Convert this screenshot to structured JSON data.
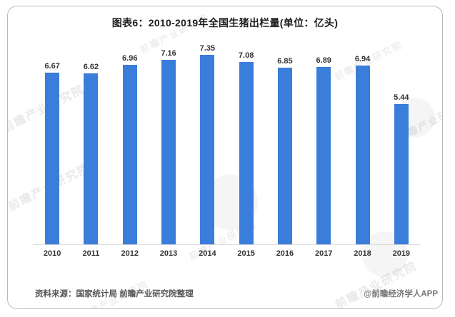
{
  "chart_data": {
    "type": "bar",
    "title": "图表6：2010-2019年全国生猪出栏量(单位：亿头)",
    "categories": [
      "2010",
      "2011",
      "2012",
      "2013",
      "2014",
      "2015",
      "2016",
      "2017",
      "2018",
      "2019"
    ],
    "values": [
      6.67,
      6.62,
      6.96,
      7.16,
      7.35,
      7.08,
      6.85,
      6.89,
      6.94,
      5.44
    ],
    "xlabel": "",
    "ylabel": "",
    "ylim": [
      0,
      7.5
    ],
    "grid": false,
    "legend": false,
    "bar_color": "#3b7ddb",
    "value_labels_shown": true
  },
  "footer": {
    "source": "资料来源：国家统计局 前瞻产业研究院整理",
    "brand": "@前瞻经济学人APP"
  },
  "watermark": {
    "text": "前瞻产业研究院"
  },
  "colors": {
    "bar": "#3b7ddb",
    "axis_line": "#d9d9d9",
    "title_text": "#1c1c1c",
    "label_text": "#333333",
    "footer_text": "#555555",
    "card_border": "#b9b9b9"
  }
}
